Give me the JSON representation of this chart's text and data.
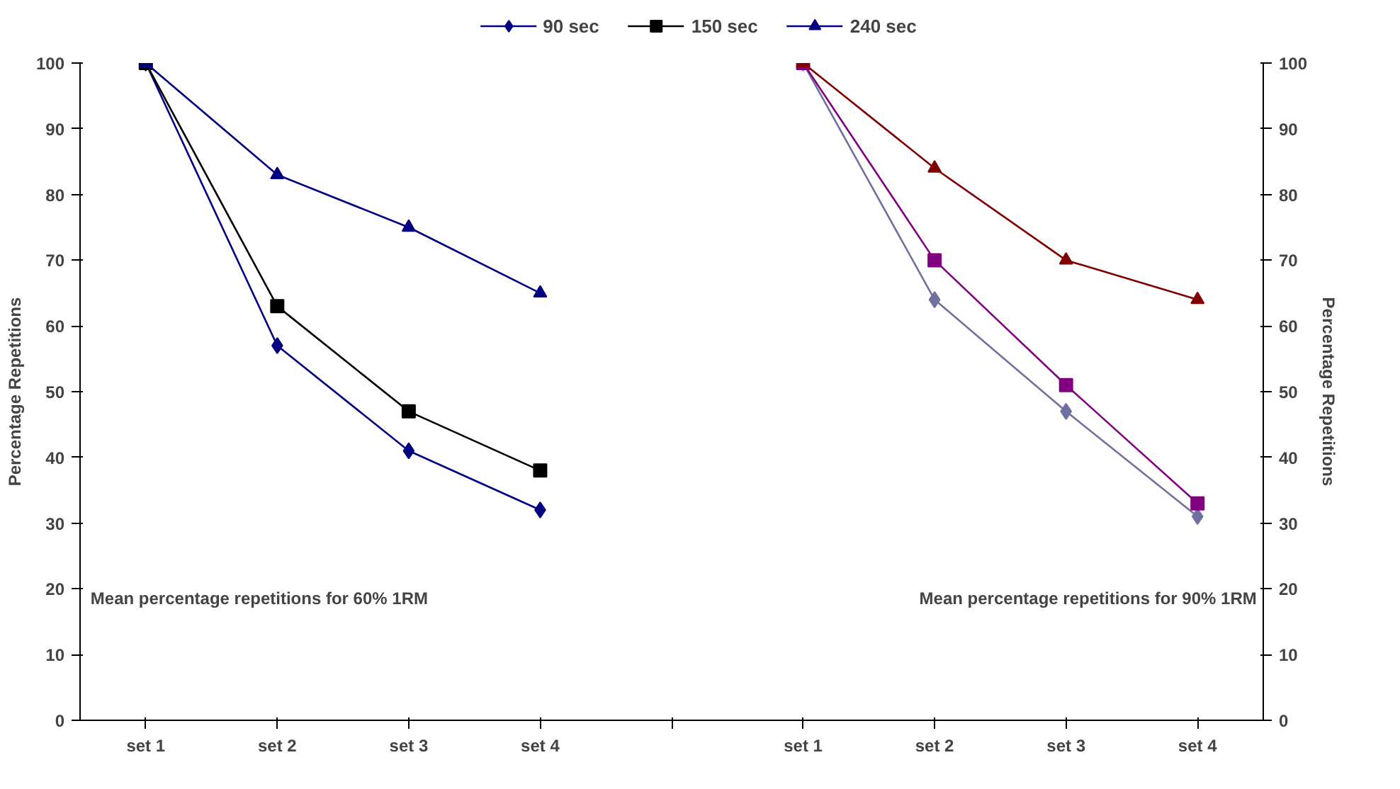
{
  "chart_data": {
    "type": "line",
    "categories": [
      "set 1",
      "set 2",
      "set 3",
      "set 4",
      null,
      "set 1",
      "set 2",
      "set 3",
      "set 4"
    ],
    "series": [
      {
        "name": "90 sec",
        "color": "#000080",
        "marker": "diamond",
        "values": [
          100,
          57,
          41,
          32,
          null,
          null,
          null,
          null,
          null
        ]
      },
      {
        "name": "150 sec",
        "color": "#000000",
        "marker": "square",
        "values": [
          100,
          63,
          47,
          38,
          null,
          null,
          null,
          null,
          null
        ]
      },
      {
        "name": "240 sec",
        "color": "#000080",
        "marker": "triangle",
        "values": [
          100,
          83,
          75,
          65,
          null,
          null,
          null,
          null,
          null
        ]
      },
      {
        "color": "#7070a0",
        "marker": "diamond",
        "values": [
          null,
          null,
          null,
          null,
          null,
          100,
          64,
          47,
          31
        ]
      },
      {
        "color": "#800080",
        "marker": "square",
        "values": [
          null,
          null,
          null,
          null,
          null,
          100,
          70,
          51,
          33
        ]
      },
      {
        "color": "#800000",
        "marker": "triangle",
        "values": [
          null,
          null,
          null,
          null,
          null,
          100,
          84,
          70,
          64
        ]
      }
    ],
    "ylabel": "Percentage Repetitions",
    "y2label": "Percentage Repetitions",
    "ylim": [
      0,
      100
    ],
    "yticks": [
      0,
      10,
      20,
      30,
      40,
      50,
      60,
      70,
      80,
      90,
      100
    ],
    "y2lim": [
      0,
      100
    ],
    "y2ticks": [
      0,
      10,
      20,
      30,
      40,
      50,
      60,
      70,
      80,
      90,
      100
    ],
    "annotations": [
      "Mean percentage repetitions for 60% 1RM",
      "Mean percentage repetitions for 90% 1RM"
    ],
    "legend": "top",
    "grid": false
  }
}
